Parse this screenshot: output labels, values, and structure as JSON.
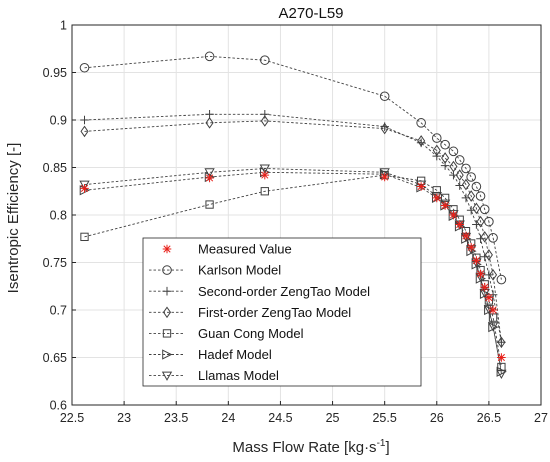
{
  "chart_data": {
    "type": "line",
    "title": "A270-L59",
    "xlabel": "Mass Flow Rate [kg·s",
    "xlabel_sup": "-1",
    "xlabel_end": "]",
    "ylabel": "Isentropic Efficiency [-]",
    "xlim": [
      22.5,
      27
    ],
    "ylim": [
      0.6,
      1
    ],
    "xticks": [
      22.5,
      23,
      23.5,
      24,
      24.5,
      25,
      25.5,
      26,
      26.5,
      27
    ],
    "yticks": [
      0.6,
      0.65,
      0.7,
      0.75,
      0.8,
      0.85,
      0.9,
      0.95,
      1
    ],
    "grid": true,
    "legend_position": "lower-left",
    "colors": {
      "axis": "#262626",
      "grid": "#e3e3e3",
      "series": "#404040",
      "measured": "#e8201a"
    },
    "series": [
      {
        "name": "Measured Value",
        "marker": "asterisk",
        "line": false,
        "x": [
          22.62,
          23.82,
          24.35,
          25.5,
          25.85,
          26.0,
          26.08,
          26.16,
          26.22,
          26.28,
          26.33,
          26.38,
          26.42,
          26.46,
          26.5,
          26.54,
          26.62
        ],
        "y": [
          0.828,
          0.839,
          0.842,
          0.84,
          0.83,
          0.818,
          0.81,
          0.8,
          0.79,
          0.778,
          0.766,
          0.752,
          0.738,
          0.724,
          0.713,
          0.7,
          0.65
        ]
      },
      {
        "name": "Karlson Model",
        "marker": "circle",
        "line": true,
        "x": [
          22.62,
          23.82,
          24.35,
          25.5,
          25.85,
          26.0,
          26.08,
          26.16,
          26.22,
          26.28,
          26.33,
          26.38,
          26.42,
          26.46,
          26.5,
          26.54,
          26.62
        ],
        "y": [
          0.955,
          0.967,
          0.963,
          0.925,
          0.897,
          0.881,
          0.874,
          0.867,
          0.858,
          0.849,
          0.84,
          0.83,
          0.82,
          0.806,
          0.793,
          0.776,
          0.732
        ]
      },
      {
        "name": "Second-order ZengTao Model",
        "marker": "plus",
        "line": true,
        "x": [
          22.62,
          23.82,
          24.35,
          25.5,
          25.85,
          26.0,
          26.08,
          26.16,
          26.22,
          26.28,
          26.33,
          26.38,
          26.42,
          26.46,
          26.5,
          26.54,
          26.62
        ],
        "y": [
          0.9,
          0.906,
          0.906,
          0.893,
          0.876,
          0.862,
          0.852,
          0.842,
          0.831,
          0.818,
          0.805,
          0.79,
          0.775,
          0.756,
          0.737,
          0.716,
          0.666
        ]
      },
      {
        "name": "First-order ZengTao Model",
        "marker": "diamond",
        "line": true,
        "x": [
          22.62,
          23.82,
          24.35,
          25.5,
          25.85,
          26.0,
          26.08,
          26.16,
          26.22,
          26.28,
          26.33,
          26.38,
          26.42,
          26.46,
          26.5,
          26.54,
          26.62
        ],
        "y": [
          0.888,
          0.897,
          0.899,
          0.891,
          0.878,
          0.868,
          0.86,
          0.851,
          0.842,
          0.832,
          0.82,
          0.807,
          0.793,
          0.777,
          0.758,
          0.737,
          0.666
        ]
      },
      {
        "name": "Guan Cong Model",
        "marker": "square",
        "line": true,
        "x": [
          22.62,
          23.82,
          24.35,
          25.5,
          25.85,
          26.0,
          26.08,
          26.16,
          26.22,
          26.28,
          26.33,
          26.38,
          26.42,
          26.46,
          26.5,
          26.54,
          26.62
        ],
        "y": [
          0.777,
          0.811,
          0.825,
          0.842,
          0.836,
          0.826,
          0.818,
          0.806,
          0.795,
          0.783,
          0.77,
          0.755,
          0.742,
          0.727,
          0.71,
          0.692,
          0.64
        ]
      },
      {
        "name": "Hadef Model",
        "marker": "triangle-right",
        "line": true,
        "x": [
          22.62,
          23.82,
          24.35,
          25.5,
          25.85,
          26.0,
          26.08,
          26.16,
          26.22,
          26.28,
          26.33,
          26.38,
          26.42,
          26.46,
          26.5,
          26.54,
          26.62
        ],
        "y": [
          0.826,
          0.84,
          0.845,
          0.843,
          0.829,
          0.818,
          0.81,
          0.799,
          0.788,
          0.775,
          0.762,
          0.748,
          0.733,
          0.717,
          0.7,
          0.682,
          0.635
        ]
      },
      {
        "name": "Llamas Model",
        "marker": "triangle-down",
        "line": true,
        "x": [
          22.62,
          23.82,
          24.35,
          25.5,
          25.85,
          26.0,
          26.08,
          26.16,
          26.22,
          26.28,
          26.33,
          26.38,
          26.42,
          26.46,
          26.5,
          26.54,
          26.62
        ],
        "y": [
          0.832,
          0.845,
          0.849,
          0.845,
          0.832,
          0.82,
          0.812,
          0.801,
          0.79,
          0.777,
          0.764,
          0.75,
          0.735,
          0.718,
          0.701,
          0.683,
          0.633
        ]
      }
    ]
  }
}
